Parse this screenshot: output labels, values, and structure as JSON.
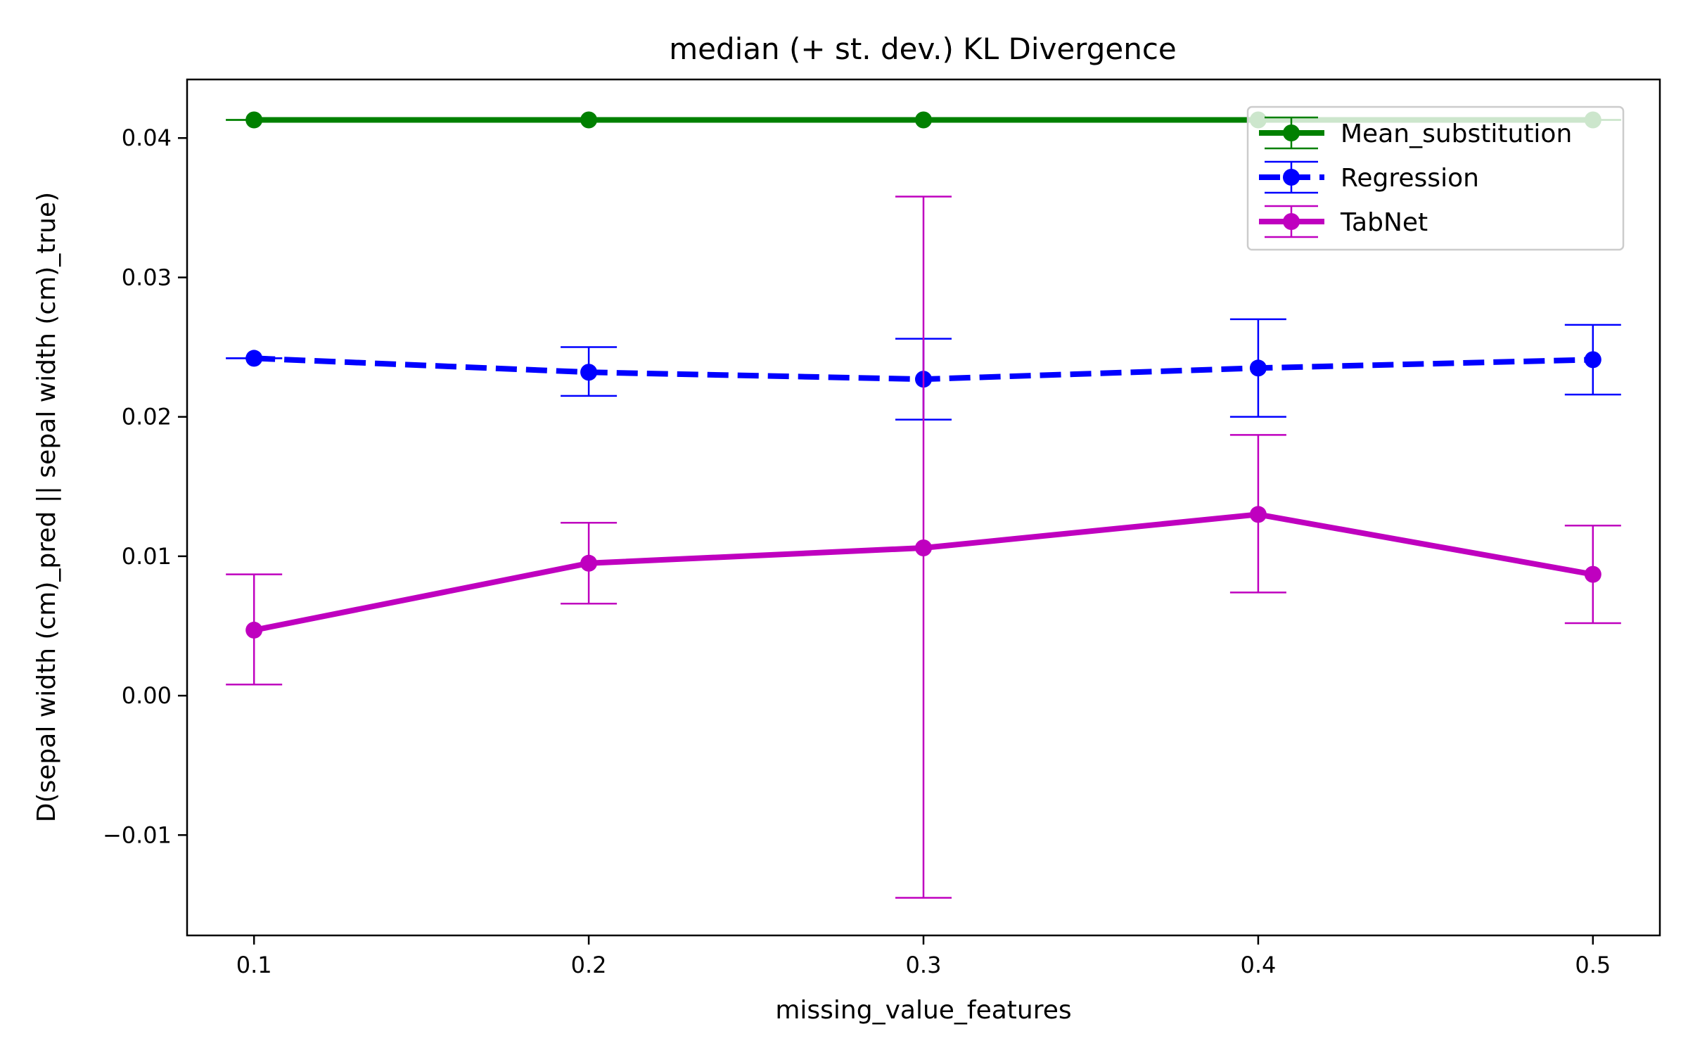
{
  "chart_data": {
    "type": "line",
    "title": "median (+ st. dev.) KL Divergence",
    "xlabel": "missing_value_features",
    "ylabel": "D(sepal width (cm)_pred || sepal width (cm)_true)",
    "x": [
      0.1,
      0.2,
      0.3,
      0.4,
      0.5
    ],
    "xlim": [
      0.08,
      0.52
    ],
    "ylim": [
      -0.0172,
      0.0442
    ],
    "xticks": [
      0.1,
      0.2,
      0.3,
      0.4,
      0.5
    ],
    "xtick_labels": [
      "0.1",
      "0.2",
      "0.3",
      "0.4",
      "0.5"
    ],
    "yticks": [
      -0.01,
      0.0,
      0.01,
      0.02,
      0.03,
      0.04
    ],
    "ytick_labels": [
      "−0.01",
      "0.00",
      "0.01",
      "0.02",
      "0.03",
      "0.04"
    ],
    "grid": false,
    "legend_position": "top-right",
    "series": [
      {
        "name": "Mean_substitution",
        "color": "#008000",
        "linestyle": "solid",
        "values": [
          0.0413,
          0.0413,
          0.0413,
          0.0413,
          0.0413
        ],
        "err_low": [
          0.0413,
          0.0413,
          0.0413,
          0.0413,
          0.0413
        ],
        "err_high": [
          0.0413,
          0.0413,
          0.0413,
          0.0413,
          0.0413
        ]
      },
      {
        "name": "Regression",
        "color": "#0000ff",
        "linestyle": "dashed",
        "values": [
          0.0242,
          0.0232,
          0.0227,
          0.0235,
          0.0241
        ],
        "err_low": [
          0.0242,
          0.0215,
          0.0198,
          0.02,
          0.0216
        ],
        "err_high": [
          0.0242,
          0.025,
          0.0256,
          0.027,
          0.0266
        ]
      },
      {
        "name": "TabNet",
        "color": "#bf00bf",
        "linestyle": "solid",
        "values": [
          0.0047,
          0.0095,
          0.0106,
          0.013,
          0.0087
        ],
        "err_low": [
          0.0008,
          0.0066,
          -0.0145,
          0.0074,
          0.0052
        ],
        "err_high": [
          0.0087,
          0.0124,
          0.0358,
          0.0187,
          0.0122
        ]
      }
    ]
  }
}
